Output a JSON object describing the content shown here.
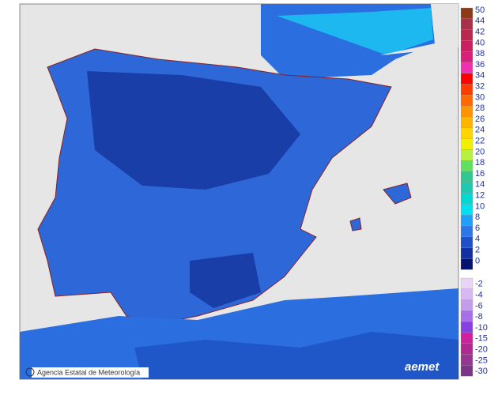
{
  "footer": {
    "credit": "Agencia Estatal de Meteorología",
    "logo": "aemet"
  },
  "legend": {
    "values": [
      50,
      44,
      42,
      40,
      38,
      36,
      34,
      32,
      30,
      28,
      26,
      24,
      22,
      20,
      18,
      16,
      14,
      12,
      10,
      8,
      6,
      4,
      2,
      0,
      -2,
      -4,
      -6,
      -8,
      -10,
      -15,
      -20,
      -25,
      -30
    ],
    "colors": [
      "#8b3a1a",
      "#a83048",
      "#b8284e",
      "#c82060",
      "#d8207a",
      "#f030b0",
      "#ff0000",
      "#ff3c00",
      "#ff6a00",
      "#ff9400",
      "#ffb400",
      "#ffd400",
      "#f0f000",
      "#b8f040",
      "#60e060",
      "#30c890",
      "#20c8b0",
      "#00d8d0",
      "#00e0f0",
      "#1ea0f8",
      "#2c78e8",
      "#2050c8",
      "#1230a0",
      "#061470",
      "#e8d4f4",
      "#d8b8f0",
      "#c49cec",
      "#a870e8",
      "#8840e0",
      "#d020a0",
      "#b02890",
      "#983494",
      "#7a3488"
    ]
  }
}
